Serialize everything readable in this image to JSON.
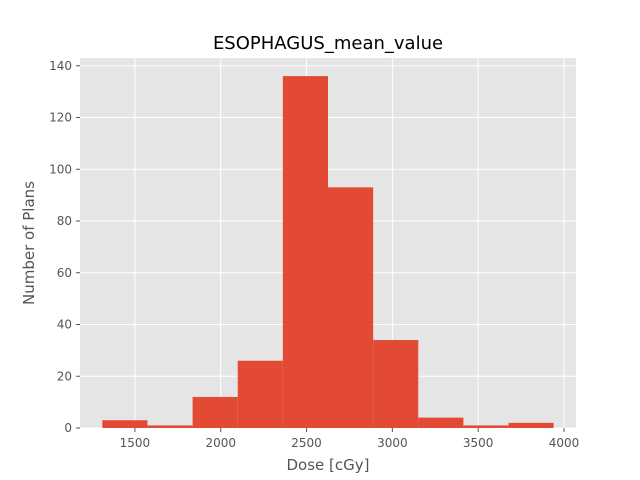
{
  "chart_data": {
    "type": "bar",
    "title": "ESOPHAGUS_mean_value",
    "xlabel": "Dose [cGy]",
    "ylabel": "Number of Plans",
    "bin_edges": [
      1310,
      1573,
      1836,
      2099,
      2362,
      2625,
      2888,
      3151,
      3414,
      3677,
      3940
    ],
    "values": [
      3,
      1,
      12,
      26,
      136,
      93,
      34,
      4,
      1,
      2
    ],
    "xlim": [
      1180,
      4070
    ],
    "ylim": [
      0,
      143
    ],
    "xticks": [
      1500,
      2000,
      2500,
      3000,
      3500,
      4000
    ],
    "yticks": [
      0,
      20,
      40,
      60,
      80,
      100,
      120,
      140
    ],
    "grid": true,
    "style": "ggplot",
    "colors": {
      "bar": "#E24A33",
      "axes_background": "#E5E5E5",
      "grid": "#FFFFFF",
      "tick": "#555555",
      "title": "#000000"
    }
  }
}
